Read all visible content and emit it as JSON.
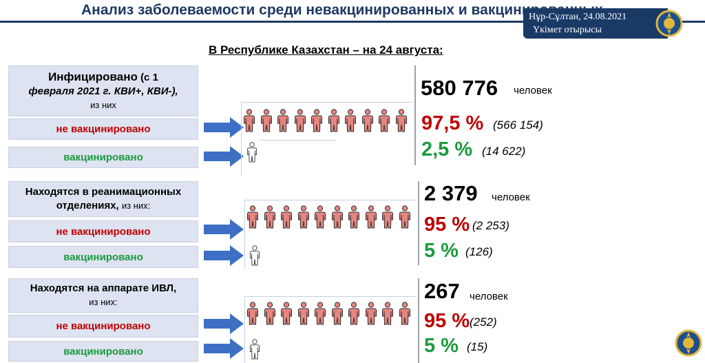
{
  "title": "Анализ заболеваемости среди невакцинированных и вакцинированных",
  "badge": {
    "location_date": "Нұр-Сұлтан, 24.08.2021",
    "organization": "Үкімет отырысы"
  },
  "subtitle": "В Республике Казахстан  – на 24 августа:",
  "sections": [
    {
      "header_bold": "Инфицировано",
      "header_rest_1": "(с 1",
      "header_line2": "февраля 2021 г. КВИ+, КВИ-),",
      "header_line3": "из них",
      "unvax_label": "не вакцинировано",
      "vax_label": "вакцинировано",
      "total": "580 776",
      "unit": "человек",
      "unvax_pct": "97,5 %",
      "unvax_count": "(566 154)",
      "vax_pct": "2,5 %",
      "vax_count": "(14 622)"
    },
    {
      "header_line1": "Находятся  в реанимационных",
      "header_line2": "отделениях,",
      "header_line2_small": "из них:",
      "unvax_label": "не вакцинировано",
      "vax_label": "вакцинировано",
      "total": "2 379",
      "unit": "человек",
      "unvax_pct": "95 %",
      "unvax_count": "(2 253)",
      "vax_pct": "5 %",
      "vax_count": "(126)"
    },
    {
      "header_line1": "Находятся  на аппарате ИВЛ,",
      "header_line2_small": "из них:",
      "unvax_label": "не вакцинировано",
      "vax_label": "вакцинировано",
      "total": "267",
      "unit": "человек",
      "unvax_pct": "95 %",
      "unvax_count": "(252)",
      "vax_pct": "5 %",
      "vax_count": "(15)"
    }
  ],
  "colors": {
    "title": "#1f3864",
    "red": "#c00000",
    "green": "#1c9a3f",
    "box_bg": "#dde3f0",
    "arrow": "#3d6fc4",
    "person_fill": "#e58680",
    "person_stroke": "#2b2b2b"
  },
  "icons": {
    "arrow": "right-arrow-icon",
    "unvaccinated_person": "person-red-icon",
    "vaccinated_person": "person-outline-icon",
    "emblem": "kazakhstan-emblem-icon"
  }
}
